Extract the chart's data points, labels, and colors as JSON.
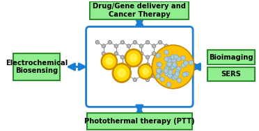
{
  "bg_color": "#ffffff",
  "box_color": "#90ee90",
  "box_edge_color": "#2d8a2d",
  "center_box_color": "#ffffff",
  "center_box_edge_color": "#1a7fd4",
  "arrow_color": "#1a7fd4",
  "labels": {
    "top": "Drug/Gene delivery and\nCancer Therapy",
    "left": "Electrochemical\nBiosensing",
    "right_top": "Bioimaging",
    "right_bottom": "SERS",
    "bottom": "Photothermal therapy (PTT)"
  },
  "label_fontsize": 7.2,
  "label_fontweight": "bold",
  "graphene_bond_color": "#888888",
  "graphene_atom_color": "#bbbbbb",
  "graphene_atom_edge": "#666666",
  "gold_np_color": "#FFD700",
  "gold_np_inner": "#ffee44",
  "gold_np_edge": "#cc8800",
  "gold_sphere_color": "#FFC200",
  "gold_sphere_edge": "#cc8800",
  "gold_sphere_dot_color": "#aaccdd",
  "gold_sphere_dot_edge": "#7799aa"
}
